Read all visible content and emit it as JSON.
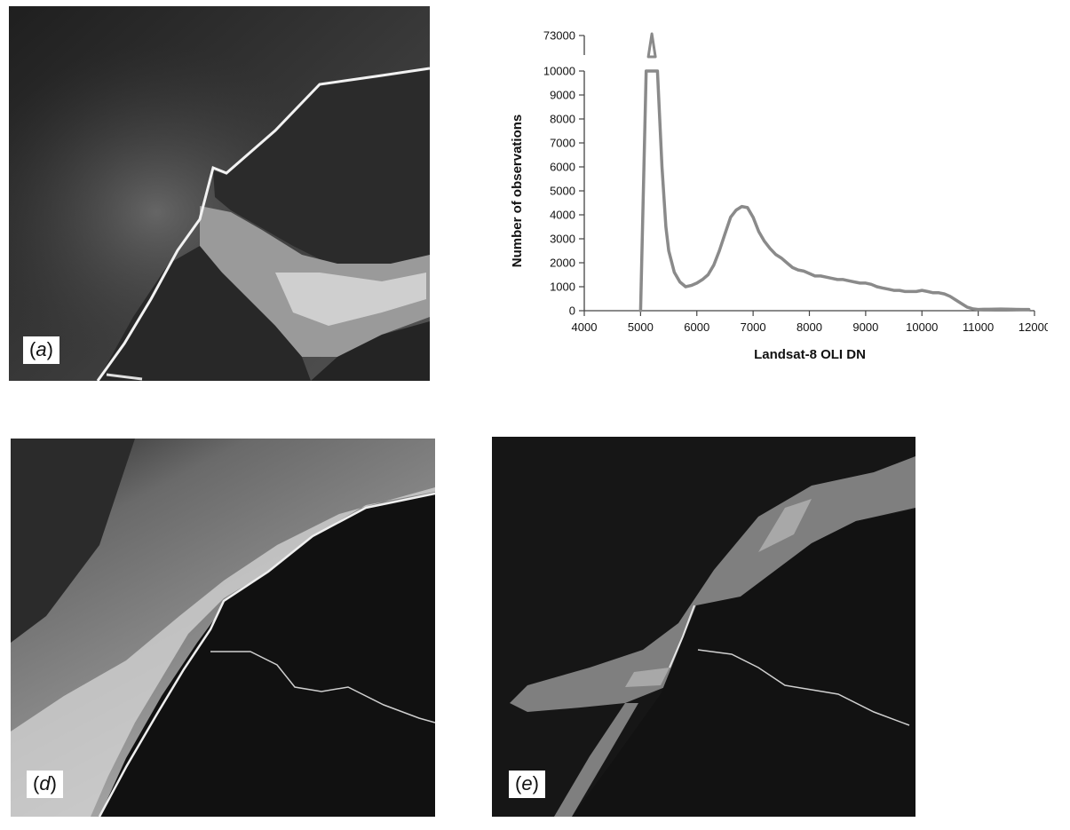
{
  "panels": {
    "a": {
      "label_open": "(",
      "label_letter": "a",
      "label_close": ")"
    },
    "d": {
      "label_open": "(",
      "label_letter": "d",
      "label_close": ")"
    },
    "e": {
      "label_open": "(",
      "label_letter": "e",
      "label_close": ")"
    }
  },
  "chart_data": {
    "type": "line",
    "title": "",
    "xlabel": "Landsat-8 OLI DN",
    "ylabel": "Number of observations",
    "xlim": [
      4000,
      12000
    ],
    "ylim": [
      0,
      10000
    ],
    "x_ticks": [
      4000,
      5000,
      6000,
      7000,
      8000,
      9000,
      10000,
      11000,
      12000
    ],
    "y_ticks": [
      0,
      1000,
      2000,
      3000,
      4000,
      5000,
      6000,
      7000,
      8000,
      9000,
      10000
    ],
    "broken_axis_tick": "73000",
    "truncated_peak": {
      "x_start": 5100,
      "x_end": 5300,
      "peak_x": 5200,
      "peak_value": 73000
    },
    "grid": false,
    "line_color": "#8a8a8a",
    "series": [
      {
        "x": [
          5000,
          5100,
          5300,
          5380,
          5450,
          5500,
          5600,
          5700,
          5800,
          5900,
          6000,
          6100,
          6200,
          6300,
          6400,
          6500,
          6600,
          6700,
          6800,
          6900,
          7000,
          7100,
          7200,
          7300,
          7400,
          7500,
          7600,
          7700,
          7800,
          7900,
          8000,
          8100,
          8200,
          8300,
          8400,
          8500,
          8600,
          8700,
          8800,
          8900,
          9000,
          9100,
          9200,
          9300,
          9400,
          9500,
          9600,
          9700,
          9800,
          9900,
          10000,
          10100,
          10200,
          10300,
          10400,
          10500,
          10600,
          10700,
          10800,
          10900,
          11000,
          11100,
          11200,
          11400,
          11600,
          11800,
          11900
        ],
        "y": [
          0,
          10000,
          10000,
          6000,
          3500,
          2500,
          1600,
          1200,
          1000,
          1050,
          1150,
          1300,
          1500,
          1900,
          2500,
          3200,
          3900,
          4200,
          4350,
          4300,
          3900,
          3300,
          2900,
          2600,
          2350,
          2200,
          2000,
          1800,
          1700,
          1650,
          1550,
          1450,
          1450,
          1400,
          1350,
          1300,
          1300,
          1250,
          1200,
          1150,
          1150,
          1100,
          1000,
          950,
          900,
          850,
          850,
          800,
          800,
          800,
          850,
          800,
          750,
          750,
          700,
          600,
          450,
          300,
          150,
          80,
          50,
          60,
          60,
          70,
          60,
          50,
          50
        ]
      }
    ]
  }
}
